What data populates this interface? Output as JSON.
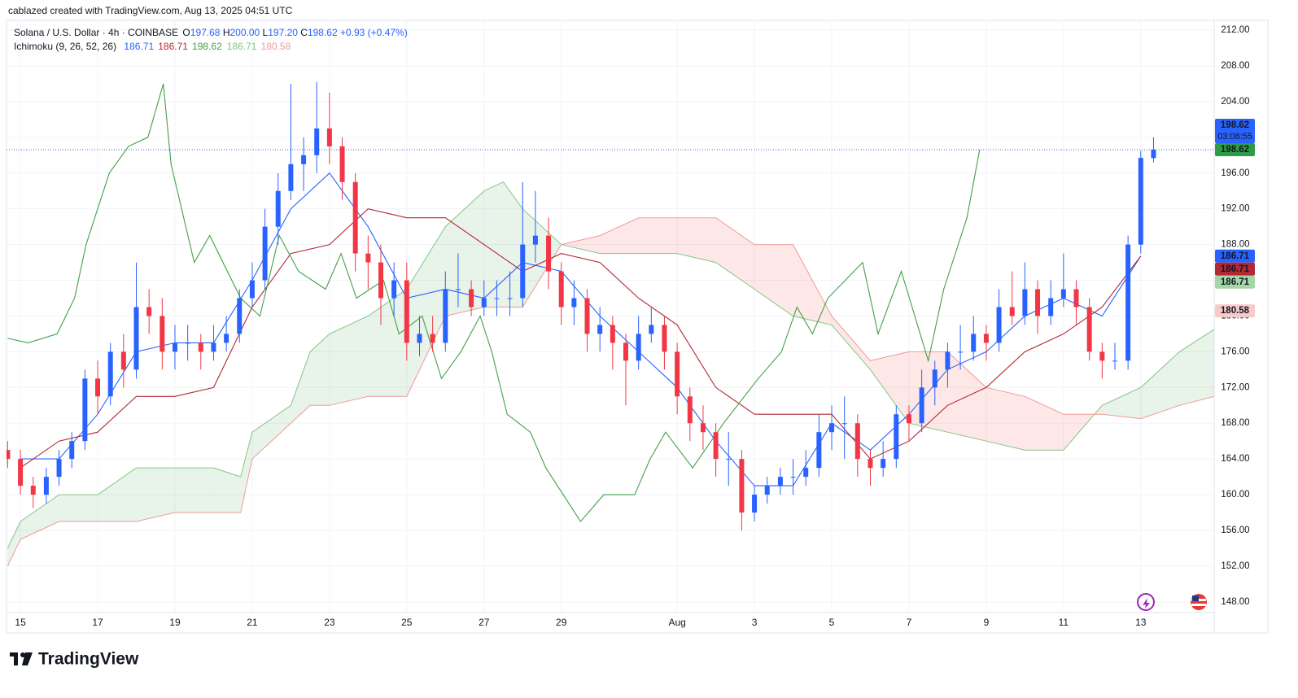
{
  "header": "cablazed created with TradingView.com, Aug 13, 2025 04:51 UTC",
  "logo": "TradingView",
  "chart_data": {
    "type": "candlestick",
    "title": "Solana / U.S. Dollar · 4h · COINBASE",
    "ohlc_legend": [
      {
        "key": "O",
        "value": "197.68"
      },
      {
        "key": "H",
        "value": "200.00"
      },
      {
        "key": "L",
        "value": "197.20"
      },
      {
        "key": "C",
        "value": "198.62"
      }
    ],
    "change": "+0.93 (+0.47%)",
    "up_color": "#2962ff",
    "down_color": "#f23645",
    "xlim": [
      14.64,
      45.9
    ],
    "ylim": [
      146.8,
      213.1
    ],
    "grid": true,
    "xticks": [
      15,
      17,
      19,
      21,
      23,
      25,
      27,
      29,
      {
        "value": 32,
        "label": "Aug"
      },
      {
        "value": 34,
        "label": "3"
      },
      {
        "value": 36,
        "label": "5"
      },
      {
        "value": 38,
        "label": "7"
      },
      {
        "value": 40,
        "label": "9"
      },
      {
        "value": 42,
        "label": "11"
      },
      {
        "value": 44,
        "label": "13"
      }
    ],
    "yticks": [
      {
        "value": 148,
        "label": "148.00"
      },
      {
        "value": 152,
        "label": "152.00"
      },
      {
        "value": 156,
        "label": "156.00"
      },
      {
        "value": 160,
        "label": "160.00"
      },
      {
        "value": 164,
        "label": "164.00"
      },
      {
        "value": 168,
        "label": "168.00"
      },
      {
        "value": 172,
        "label": "172.00"
      },
      {
        "value": 176,
        "label": "176.00"
      },
      {
        "value": 180,
        "label": "180.00"
      },
      {
        "value": 184,
        "label": "184.00"
      },
      {
        "value": 188,
        "label": "188.00"
      },
      {
        "value": 192,
        "label": "192.00"
      },
      {
        "value": 196,
        "label": "196.00"
      },
      {
        "value": 200,
        "label": "200.00"
      },
      {
        "value": 204,
        "label": "204.00"
      },
      {
        "value": 208,
        "label": "208.00"
      },
      {
        "value": 212,
        "label": "212.00"
      }
    ],
    "x": [
      14.67,
      15,
      15.33,
      15.67,
      16,
      16.33,
      16.67,
      17,
      17.33,
      17.67,
      18,
      18.33,
      18.67,
      19,
      19.33,
      19.67,
      20,
      20.33,
      20.67,
      21,
      21.33,
      21.67,
      22,
      22.33,
      22.67,
      23,
      23.33,
      23.67,
      24,
      24.33,
      24.67,
      25,
      25.33,
      25.67,
      26,
      26.33,
      26.67,
      27,
      27.33,
      27.67,
      28,
      28.33,
      28.67,
      29,
      29.33,
      29.67,
      30,
      30.33,
      30.67,
      31,
      31.33,
      31.67,
      32,
      32.33,
      32.67,
      33,
      33.33,
      33.67,
      34,
      34.33,
      34.67,
      35,
      35.33,
      35.67,
      36,
      36.33,
      36.67,
      37,
      37.33,
      37.67,
      38,
      38.33,
      38.67,
      39,
      39.33,
      39.67,
      40,
      40.33,
      40.67,
      41,
      41.33,
      41.67,
      42,
      42.33,
      42.67,
      43,
      43.33,
      43.67,
      44,
      44.33
    ],
    "open": [
      165,
      164,
      161,
      160,
      162,
      164,
      166,
      173,
      171,
      176,
      174,
      181,
      180,
      176,
      177,
      177,
      176,
      177,
      178,
      182,
      184,
      190,
      194,
      197,
      198,
      201,
      199,
      195,
      187,
      186,
      182,
      184,
      177,
      178,
      177,
      183,
      183,
      181,
      182,
      182,
      182,
      188,
      189,
      185,
      181,
      182,
      178,
      179,
      177,
      175,
      178,
      179,
      176,
      171,
      168,
      167,
      164,
      164,
      158,
      160,
      161,
      162,
      162,
      163,
      167,
      168,
      168,
      164,
      163,
      164,
      169,
      168,
      172,
      174,
      176,
      176,
      178,
      177,
      181,
      180,
      183,
      180,
      182,
      183,
      181,
      176,
      175,
      175,
      188,
      197.68
    ],
    "high": [
      166,
      165,
      162,
      163,
      165,
      167,
      174,
      175,
      177,
      178,
      186,
      183,
      182,
      179,
      179,
      178,
      179,
      180,
      183,
      186,
      192,
      196,
      206,
      200,
      206.2,
      205,
      200,
      196,
      189,
      188,
      186,
      186,
      180,
      180,
      185,
      187,
      184,
      184,
      184,
      185,
      195,
      194,
      191,
      186,
      184,
      183,
      181,
      180,
      178,
      180,
      181,
      180,
      177,
      172,
      170,
      168,
      167,
      165,
      161,
      162,
      163,
      164,
      165,
      169,
      170,
      171,
      169,
      165,
      166,
      170,
      170,
      174,
      175,
      177,
      179,
      180,
      179,
      183,
      185,
      186,
      184,
      184,
      187,
      184,
      182,
      177,
      177,
      189,
      198.5,
      200
    ],
    "low": [
      163,
      160,
      158.5,
      159,
      161,
      163,
      165,
      169,
      170,
      172,
      173,
      178,
      174,
      174,
      175,
      174,
      175,
      176,
      177,
      181,
      183,
      188,
      193,
      194,
      196,
      197,
      193,
      185,
      183,
      179,
      180,
      175,
      175.5,
      176,
      176,
      181,
      180,
      180,
      180,
      180,
      181,
      186,
      183,
      179,
      179,
      176,
      176,
      174,
      170,
      174,
      177,
      174,
      169,
      166,
      165,
      162,
      161,
      156,
      157,
      159,
      160,
      160,
      161,
      162,
      165,
      164,
      162,
      161,
      162,
      163,
      166,
      167,
      170,
      172,
      174,
      175,
      175,
      176,
      179,
      179,
      178,
      179,
      181,
      179,
      175,
      173,
      174,
      174,
      187,
      197.2
    ],
    "close": [
      164,
      161,
      160,
      162,
      164,
      166,
      173,
      171,
      176,
      174,
      181,
      180,
      176,
      177,
      177,
      176,
      177,
      178,
      182,
      184,
      190,
      194,
      197,
      198,
      201,
      199,
      195,
      187,
      186,
      182,
      184,
      177,
      178,
      177,
      183,
      183,
      181,
      182,
      182,
      182,
      188,
      189,
      185,
      181,
      182,
      178,
      179,
      177,
      175,
      178,
      179,
      176,
      171,
      168,
      167,
      164,
      164,
      158,
      160,
      161,
      162,
      162,
      163,
      167,
      168,
      168,
      164,
      163,
      164,
      169,
      168,
      172,
      174,
      176,
      176,
      178,
      177,
      181,
      180,
      183,
      180,
      182,
      183,
      181,
      176,
      175,
      175,
      188,
      197.7,
      198.62
    ],
    "series": [
      {
        "color": "#2962ff",
        "x": [
          15,
          16,
          17,
          18,
          19,
          20,
          21,
          22,
          23,
          24,
          25,
          26,
          27,
          28,
          29,
          30,
          31,
          32,
          33,
          34,
          35,
          36,
          37,
          38,
          39,
          40,
          41,
          42,
          43,
          44
        ],
        "values": [
          164,
          164,
          169,
          176,
          177,
          177,
          184,
          192,
          196,
          190,
          182,
          183,
          182,
          186,
          185,
          180,
          176,
          172,
          166,
          161,
          161,
          168,
          165,
          169,
          174,
          176,
          180,
          182,
          180,
          186.71
        ]
      },
      {
        "color": "#b22833",
        "x": [
          15,
          16,
          17,
          18,
          19,
          20,
          21,
          22,
          23,
          24,
          25,
          26,
          27,
          28,
          29,
          30,
          31,
          32,
          33,
          34,
          35,
          36,
          37,
          38,
          39,
          40,
          41,
          42,
          43,
          44
        ],
        "values": [
          163,
          166,
          167,
          171,
          171,
          172,
          181,
          187,
          188,
          192,
          191,
          191,
          188,
          185,
          187,
          186,
          182,
          179,
          172,
          169,
          169,
          169,
          164,
          166,
          170,
          172,
          176,
          178,
          181,
          186.71
        ]
      },
      {
        "color": "#43a047",
        "x": [
          14.67,
          15.2,
          15.95,
          16.4,
          16.7,
          17.0,
          17.3,
          17.8,
          18.3,
          18.7,
          18.9,
          19.5,
          19.9,
          20.7,
          21.2,
          21.7,
          22.2,
          22.9,
          23.3,
          23.7,
          24.4,
          24.8,
          25.4,
          25.9,
          26.4,
          26.9,
          27.2,
          27.6,
          28.2,
          28.6,
          29.5,
          30.1,
          30.9,
          31.3,
          31.7,
          32.4,
          33.2,
          34.1,
          34.7,
          35.1,
          35.5,
          35.9,
          36.8,
          37.2,
          37.8,
          38.5,
          38.9,
          39.5,
          39.83
        ],
        "values": [
          177.5,
          177,
          178,
          182,
          188,
          192,
          196,
          199,
          200,
          206,
          197,
          186,
          189,
          182,
          180,
          189,
          185,
          183,
          187,
          182,
          184,
          178,
          180,
          173,
          176,
          180,
          176,
          169,
          167,
          163,
          157,
          160,
          160,
          164,
          167,
          163,
          168,
          173,
          176,
          181,
          178,
          182,
          186,
          178,
          185,
          175,
          183,
          191,
          198.62
        ]
      }
    ],
    "cloud": {
      "x": [
        14.67,
        15,
        16,
        17,
        18,
        19,
        20,
        20.7,
        21,
        22,
        22.5,
        23,
        24,
        25,
        26,
        27,
        27.5,
        28,
        29,
        30,
        31,
        32,
        33,
        34,
        35,
        36,
        37,
        38,
        39,
        40,
        41,
        42,
        43,
        44,
        45,
        45.9
      ],
      "span_a": {
        "color": "#81c784",
        "values": [
          154,
          157,
          160,
          160,
          163,
          163,
          163,
          162,
          167,
          170,
          176,
          178,
          180,
          183,
          190,
          194,
          195,
          192,
          188,
          187,
          187,
          187,
          186,
          183,
          180,
          179,
          174,
          168,
          167,
          166,
          165,
          165,
          170,
          172,
          176,
          178.5
        ]
      },
      "span_b": {
        "color": "#ef9a9a",
        "values": [
          152,
          155,
          157,
          157,
          157,
          158,
          158,
          158,
          164,
          168,
          170,
          170,
          171,
          171,
          180,
          181,
          181,
          181,
          188,
          189,
          191,
          191,
          191,
          188,
          188,
          180,
          175,
          176,
          176,
          172,
          171,
          169,
          169,
          168.5,
          170,
          171
        ]
      },
      "fill_up": "rgba(67,160,71,0.12)",
      "fill_down": "rgba(244,67,54,0.12)"
    },
    "indicator": {
      "label": "Ichimoku (9, 26, 52, 26)",
      "values": [
        186.71,
        186.71,
        198.62,
        186.71,
        180.58
      ],
      "colors": [
        "#2962ff",
        "#b22833",
        "#43a047",
        "#81c784",
        "#ef9a9a"
      ]
    },
    "badges": [
      {
        "value": 198.62,
        "countdown": "03:08:55",
        "color": "#2962ff",
        "text_color": "#ffffff"
      },
      {
        "value": 198.62,
        "color": "#2e9b48",
        "text_color": "#ffffff"
      },
      {
        "value": 186.71,
        "color": "#2962ff",
        "text_color": "#ffffff"
      },
      {
        "value": 186.71,
        "color": "#b22833",
        "text_color": "#ffffff"
      },
      {
        "value": 186.71,
        "color": "#a5d6a7",
        "text_color": "#131722"
      },
      {
        "value": 180.58,
        "color": "#f8c9c9",
        "text_color": "#131722"
      }
    ]
  }
}
